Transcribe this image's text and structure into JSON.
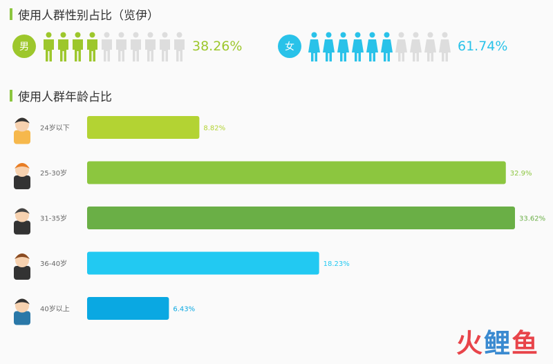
{
  "gender_section": {
    "title": "使用人群性别占比（览伊）"
  },
  "gender": {
    "male": {
      "label": "男",
      "percent_text": "38.26%",
      "value": 38.26,
      "filled_icons": 4,
      "total_icons": 10,
      "color": "#9dc72c",
      "empty_color": "#dddddd"
    },
    "female": {
      "label": "女",
      "percent_text": "61.74%",
      "value": 61.74,
      "filled_icons": 6,
      "total_icons": 10,
      "color": "#29c2e9",
      "empty_color": "#dddddd"
    }
  },
  "age_section": {
    "title": "使用人群年龄占比"
  },
  "chart_data": {
    "type": "bar",
    "orientation": "horizontal",
    "categories": [
      "24岁以下",
      "25-30岁",
      "31-35岁",
      "36-40岁",
      "40岁以上"
    ],
    "values": [
      8.82,
      32.9,
      33.62,
      18.23,
      6.43
    ],
    "value_labels": [
      "8.82%",
      "32.9%",
      "33.62%",
      "18.23%",
      "6.43%"
    ],
    "colors": [
      "#b3d333",
      "#8cc63f",
      "#6aaf46",
      "#22c9f2",
      "#0aa8e2"
    ],
    "title": "",
    "xlabel": "",
    "ylabel": "",
    "xlim": [
      0,
      33.62
    ],
    "grid": false,
    "legend": "none"
  },
  "watermark": {
    "part1": "火",
    "part2": "鲤",
    "part3": "鱼"
  }
}
